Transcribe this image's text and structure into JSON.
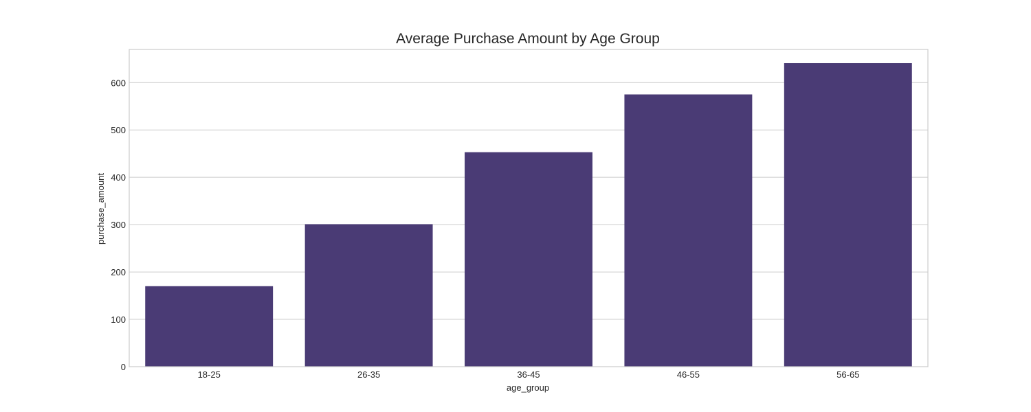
{
  "chart_data": {
    "type": "bar",
    "title": "Average Purchase Amount by Age Group",
    "xlabel": "age_group",
    "ylabel": "purchase_amount",
    "categories": [
      "18-25",
      "26-35",
      "36-45",
      "46-55",
      "56-65"
    ],
    "values": [
      170,
      301,
      453,
      575,
      641
    ],
    "ylim": [
      0,
      670
    ],
    "yticks": [
      0,
      100,
      200,
      300,
      400,
      500,
      600
    ],
    "grid": true,
    "bar_color": "#4a3b75"
  }
}
